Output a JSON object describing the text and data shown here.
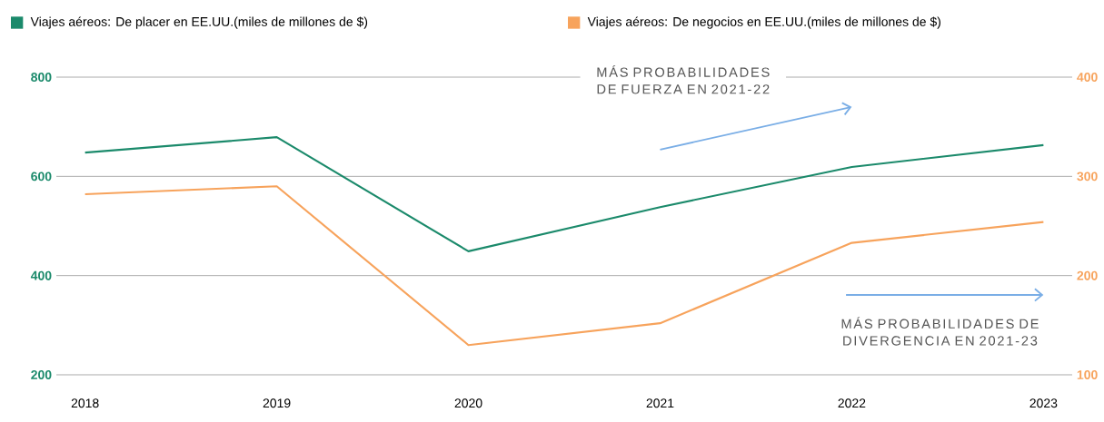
{
  "chart_data": {
    "type": "line",
    "categories": [
      "2018",
      "2019",
      "2020",
      "2021",
      "2022",
      "2023"
    ],
    "series": [
      {
        "name": "Viajes aéreos: De placer en EE.UU.(miles de millones de $)",
        "color": "#1b8a6b",
        "values": [
          648,
          679,
          449,
          538,
          619,
          663
        ]
      },
      {
        "name": "Viajes aéreos: De negocios en EE.UU.(miles de millones de $)",
        "color": "#f7a35c",
        "axis": "y2",
        "values": [
          282,
          290,
          130,
          152,
          233,
          254
        ]
      }
    ],
    "ylim": [
      200,
      800
    ],
    "yticks": [
      200,
      400,
      600,
      800
    ],
    "y2lim": [
      100,
      400
    ],
    "y2ticks": [
      100,
      200,
      300,
      400
    ],
    "grid": "y",
    "legend": "top",
    "marker": "none",
    "line_style": "solid",
    "annotations": [
      "MÁS PROBABILIDADES DE FUERZA EN 2021-22",
      "MÁS PROBABILIDADES DE DIVERGENCIA EN 2021-23"
    ]
  }
}
